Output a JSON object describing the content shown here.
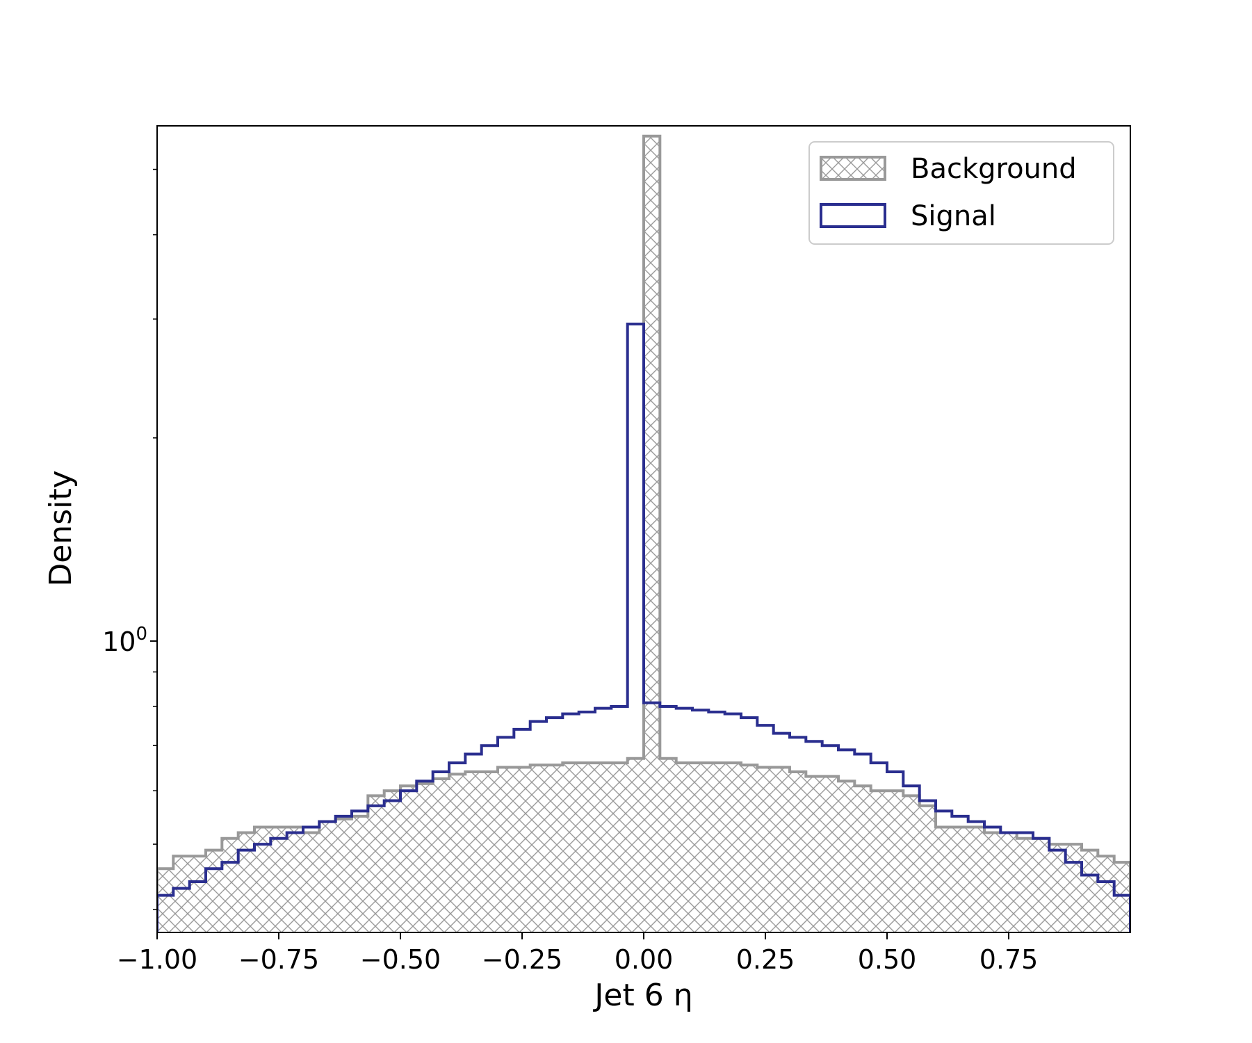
{
  "chart_data": {
    "type": "histogram",
    "xlabel": "Jet 6 η",
    "ylabel": "Density",
    "ylog": true,
    "xlim": [
      -1.0,
      1.0
    ],
    "ylim": [
      0.37,
      5.8
    ],
    "xticks": [
      -1.0,
      -0.75,
      -0.5,
      -0.25,
      0.0,
      0.25,
      0.5,
      0.75
    ],
    "xtick_labels": [
      "−1.00",
      "−0.75",
      "−0.50",
      "−0.25",
      "0.00",
      "0.25",
      "0.50",
      "0.75"
    ],
    "ytick_labels": [
      {
        "value": 1,
        "base": "10",
        "exp": "0"
      }
    ],
    "bin_edges": [
      -1.0,
      -0.9667,
      -0.9333,
      -0.9,
      -0.8667,
      -0.8333,
      -0.8,
      -0.7667,
      -0.7333,
      -0.7,
      -0.6667,
      -0.6333,
      -0.6,
      -0.5667,
      -0.5333,
      -0.5,
      -0.4667,
      -0.4333,
      -0.4,
      -0.3667,
      -0.3333,
      -0.3,
      -0.2667,
      -0.2333,
      -0.2,
      -0.1667,
      -0.1333,
      -0.1,
      -0.0667,
      -0.0333,
      0.0,
      0.0333,
      0.0667,
      0.1,
      0.1333,
      0.1667,
      0.2,
      0.2333,
      0.2667,
      0.3,
      0.3333,
      0.3667,
      0.4,
      0.4333,
      0.4667,
      0.5,
      0.5333,
      0.5667,
      0.6,
      0.6333,
      0.6667,
      0.7,
      0.7333,
      0.7667,
      0.8,
      0.8333,
      0.8667,
      0.9,
      0.9333,
      0.9667,
      1.0
    ],
    "legend_position": "upper-right",
    "series": [
      {
        "name": "Background",
        "style": "hatched",
        "color": "#999999",
        "values": [
          0.46,
          0.48,
          0.48,
          0.49,
          0.51,
          0.52,
          0.53,
          0.53,
          0.53,
          0.52,
          0.54,
          0.545,
          0.55,
          0.59,
          0.6,
          0.61,
          0.615,
          0.625,
          0.635,
          0.64,
          0.64,
          0.65,
          0.65,
          0.655,
          0.655,
          0.66,
          0.66,
          0.66,
          0.66,
          0.67,
          5.6,
          0.67,
          0.66,
          0.66,
          0.66,
          0.66,
          0.655,
          0.65,
          0.65,
          0.64,
          0.63,
          0.63,
          0.62,
          0.61,
          0.6,
          0.6,
          0.59,
          0.57,
          0.53,
          0.53,
          0.53,
          0.52,
          0.52,
          0.51,
          0.51,
          0.5,
          0.5,
          0.49,
          0.48,
          0.47
        ]
      },
      {
        "name": "Signal",
        "style": "step",
        "color": "#2a2e8f",
        "values": [
          0.42,
          0.43,
          0.44,
          0.46,
          0.47,
          0.49,
          0.5,
          0.51,
          0.52,
          0.53,
          0.54,
          0.55,
          0.56,
          0.57,
          0.58,
          0.6,
          0.62,
          0.64,
          0.66,
          0.68,
          0.7,
          0.72,
          0.74,
          0.76,
          0.77,
          0.78,
          0.785,
          0.795,
          0.8,
          2.95,
          0.81,
          0.8,
          0.795,
          0.79,
          0.785,
          0.78,
          0.77,
          0.75,
          0.73,
          0.72,
          0.71,
          0.7,
          0.69,
          0.68,
          0.66,
          0.64,
          0.61,
          0.58,
          0.56,
          0.55,
          0.54,
          0.53,
          0.52,
          0.52,
          0.51,
          0.49,
          0.47,
          0.45,
          0.44,
          0.42
        ]
      }
    ]
  }
}
